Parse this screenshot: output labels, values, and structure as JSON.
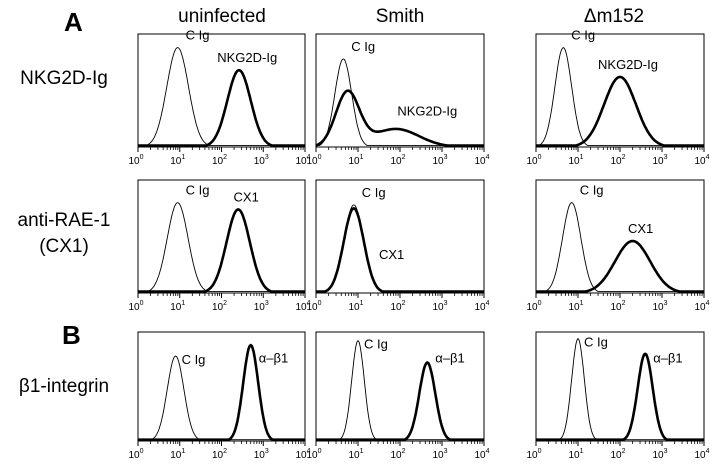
{
  "panel_letters": [
    "A",
    "B"
  ],
  "column_headers": [
    "uninfected",
    "Smith",
    "Δm152"
  ],
  "row_labels": [
    {
      "lines": [
        "NKG2D-Ig"
      ]
    },
    {
      "lines": [
        "anti-RAE-1",
        "(CX1)"
      ]
    },
    {
      "lines": [
        "β1-integrin"
      ]
    }
  ],
  "x_axis": {
    "scale": "log",
    "ticks": [
      {
        "base": "10",
        "exp": "0"
      },
      {
        "base": "10",
        "exp": "1"
      },
      {
        "base": "10",
        "exp": "2"
      },
      {
        "base": "10",
        "exp": "3"
      },
      {
        "base": "10",
        "exp": "4"
      }
    ]
  },
  "chart_data": [
    {
      "type": "line",
      "row": 0,
      "col": 0,
      "xlim": [
        0,
        4
      ],
      "ylim": [
        0,
        1
      ],
      "series": [
        {
          "name": "C Ig",
          "style": "thin",
          "peaks": [
            {
              "mu": 0.95,
              "sd": 0.26,
              "h": 0.88
            }
          ]
        },
        {
          "name": "NKG2D-Ig",
          "style": "bold",
          "peaks": [
            {
              "mu": 2.42,
              "sd": 0.28,
              "h": 0.68
            }
          ]
        }
      ]
    },
    {
      "type": "line",
      "row": 0,
      "col": 1,
      "xlim": [
        0,
        4
      ],
      "ylim": [
        0,
        1
      ],
      "series": [
        {
          "name": "C Ig",
          "style": "thin",
          "peaks": [
            {
              "mu": 0.65,
              "sd": 0.2,
              "h": 0.78
            }
          ]
        },
        {
          "name": "NKG2D-Ig",
          "style": "bold",
          "peaks": [
            {
              "mu": 0.75,
              "sd": 0.28,
              "h": 0.48
            },
            {
              "mu": 1.9,
              "sd": 0.55,
              "h": 0.16
            }
          ]
        }
      ]
    },
    {
      "type": "line",
      "row": 0,
      "col": 2,
      "xlim": [
        0,
        4
      ],
      "ylim": [
        0,
        1
      ],
      "series": [
        {
          "name": "C Ig",
          "style": "thin",
          "peaks": [
            {
              "mu": 0.65,
              "sd": 0.2,
              "h": 0.88
            }
          ]
        },
        {
          "name": "NKG2D-Ig",
          "style": "bold",
          "peaks": [
            {
              "mu": 2.0,
              "sd": 0.38,
              "h": 0.62
            }
          ]
        }
      ]
    },
    {
      "type": "line",
      "row": 1,
      "col": 0,
      "xlim": [
        0,
        4
      ],
      "ylim": [
        0,
        1
      ],
      "series": [
        {
          "name": "C Ig",
          "style": "thin",
          "peaks": [
            {
              "mu": 0.95,
              "sd": 0.25,
              "h": 0.8
            }
          ]
        },
        {
          "name": "CX1",
          "style": "bold",
          "peaks": [
            {
              "mu": 2.4,
              "sd": 0.28,
              "h": 0.74
            }
          ]
        }
      ]
    },
    {
      "type": "line",
      "row": 1,
      "col": 1,
      "xlim": [
        0,
        4
      ],
      "ylim": [
        0,
        1
      ],
      "series": [
        {
          "name": "C Ig",
          "style": "thin",
          "peaks": [
            {
              "mu": 0.9,
              "sd": 0.23,
              "h": 0.78
            }
          ]
        },
        {
          "name": "CX1",
          "style": "bold",
          "peaks": [
            {
              "mu": 0.9,
              "sd": 0.24,
              "h": 0.75
            }
          ]
        }
      ]
    },
    {
      "type": "line",
      "row": 1,
      "col": 2,
      "xlim": [
        0,
        4
      ],
      "ylim": [
        0,
        1
      ],
      "series": [
        {
          "name": "C Ig",
          "style": "thin",
          "peaks": [
            {
              "mu": 0.85,
              "sd": 0.22,
              "h": 0.8
            }
          ]
        },
        {
          "name": "CX1",
          "style": "bold",
          "peaks": [
            {
              "mu": 2.3,
              "sd": 0.42,
              "h": 0.46
            }
          ]
        }
      ]
    },
    {
      "type": "line",
      "row": 2,
      "col": 0,
      "xlim": [
        0,
        4
      ],
      "ylim": [
        0,
        1
      ],
      "series": [
        {
          "name": "C Ig",
          "style": "thin",
          "peaks": [
            {
              "mu": 0.9,
              "sd": 0.2,
              "h": 0.78
            }
          ]
        },
        {
          "name": "α–β1",
          "style": "bold",
          "peaks": [
            {
              "mu": 2.7,
              "sd": 0.18,
              "h": 0.88
            }
          ]
        }
      ]
    },
    {
      "type": "line",
      "row": 2,
      "col": 1,
      "xlim": [
        0,
        4
      ],
      "ylim": [
        0,
        1
      ],
      "series": [
        {
          "name": "C Ig",
          "style": "thin",
          "peaks": [
            {
              "mu": 1.0,
              "sd": 0.15,
              "h": 0.92
            }
          ]
        },
        {
          "name": "α–β1",
          "style": "bold",
          "peaks": [
            {
              "mu": 2.65,
              "sd": 0.19,
              "h": 0.72
            }
          ]
        }
      ]
    },
    {
      "type": "line",
      "row": 2,
      "col": 2,
      "xlim": [
        0,
        4
      ],
      "ylim": [
        0,
        1
      ],
      "series": [
        {
          "name": "C Ig",
          "style": "thin",
          "peaks": [
            {
              "mu": 1.0,
              "sd": 0.15,
              "h": 0.94
            }
          ]
        },
        {
          "name": "α–β1",
          "style": "bold",
          "peaks": [
            {
              "mu": 2.6,
              "sd": 0.18,
              "h": 0.8
            }
          ]
        }
      ]
    }
  ]
}
